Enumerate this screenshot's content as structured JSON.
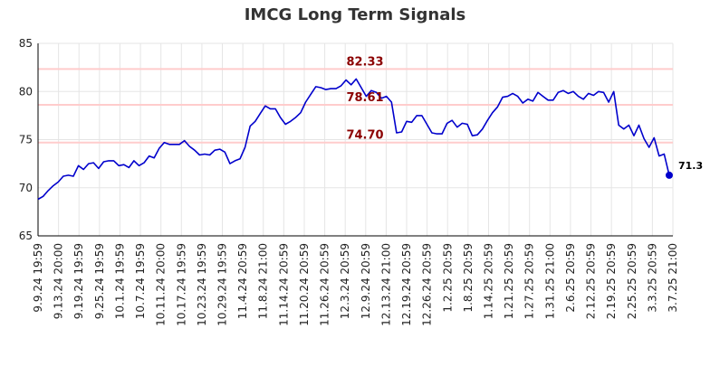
{
  "chart_data": {
    "type": "line",
    "title": "IMCG Long Term Signals",
    "xlabel": "",
    "ylabel": "",
    "ylim": [
      65,
      85
    ],
    "y_ticks": [
      65,
      70,
      75,
      80,
      85
    ],
    "x_tick_labels": [
      "9.9.24 19:59",
      "9.13.24 20:00",
      "9.19.24 19:59",
      "9.25.24 19:59",
      "10.1.24 19:59",
      "10.7.24 19:59",
      "10.11.24 20:00",
      "10.17.24 19:59",
      "10.23.24 19:59",
      "10.29.24 19:59",
      "11.4.24 20:59",
      "11.8.24 21:00",
      "11.14.24 20:59",
      "11.20.24 20:59",
      "11.26.24 20:59",
      "12.3.24 20:59",
      "12.9.24 20:59",
      "12.13.24 21:00",
      "12.19.24 20:59",
      "12.26.24 20:59",
      "1.2.25 20:59",
      "1.8.25 20:59",
      "1.14.25 20:59",
      "1.21.25 20:59",
      "1.27.25 20:59",
      "1.31.25 21:00",
      "2.6.25 20:59",
      "2.12.25 20:59",
      "2.19.25 20:59",
      "2.25.25 20:59",
      "3.3.25 20:59",
      "3.7.25 21:00"
    ],
    "grid": true,
    "series": [
      {
        "color": "#0000cc",
        "values": [
          68.8,
          69.1,
          69.7,
          70.2,
          70.6,
          71.2,
          71.3,
          71.2,
          72.3,
          71.9,
          72.5,
          72.6,
          72.0,
          72.7,
          72.8,
          72.8,
          72.3,
          72.4,
          72.1,
          72.8,
          72.3,
          72.6,
          73.3,
          73.1,
          74.1,
          74.7,
          74.5,
          74.5,
          74.5,
          74.9,
          74.3,
          73.9,
          73.4,
          73.5,
          73.4,
          73.9,
          74.0,
          73.7,
          72.5,
          72.8,
          73.0,
          74.2,
          76.4,
          76.9,
          77.7,
          78.5,
          78.2,
          78.2,
          77.3,
          76.6,
          76.9,
          77.3,
          77.8,
          78.9,
          79.7,
          80.5,
          80.4,
          80.2,
          80.3,
          80.3,
          80.6,
          81.2,
          80.7,
          81.3,
          80.4,
          79.5,
          80.1,
          79.9,
          79.3,
          79.5,
          78.9,
          75.7,
          75.8,
          76.9,
          76.8,
          77.5,
          77.5,
          76.6,
          75.7,
          75.6,
          75.6,
          76.7,
          77.0,
          76.3,
          76.7,
          76.6,
          75.4,
          75.5,
          76.1,
          77.0,
          77.8,
          78.4,
          79.4,
          79.5,
          79.8,
          79.5,
          78.8,
          79.2,
          79.0,
          79.9,
          79.5,
          79.1,
          79.1,
          79.9,
          80.1,
          79.8,
          80.0,
          79.5,
          79.2,
          79.8,
          79.6,
          80.0,
          79.9,
          78.9,
          80.0,
          76.5,
          76.1,
          76.5,
          75.4,
          76.5,
          75.1,
          74.2,
          75.2,
          73.3,
          73.5,
          71.3
        ]
      }
    ],
    "last_value_label": "71.3",
    "reference_lines": [
      {
        "value": 82.33,
        "label": "82.33"
      },
      {
        "value": 78.61,
        "label": "78.61"
      },
      {
        "value": 74.7,
        "label": "74.70"
      }
    ],
    "colors": {
      "line": "#0000cc",
      "reference_line": "#ffcccc",
      "reference_label": "#8b0000",
      "grid": "#e5e5e5",
      "axis": "#000000",
      "tick_text": "#222222",
      "title": "#333333"
    }
  }
}
